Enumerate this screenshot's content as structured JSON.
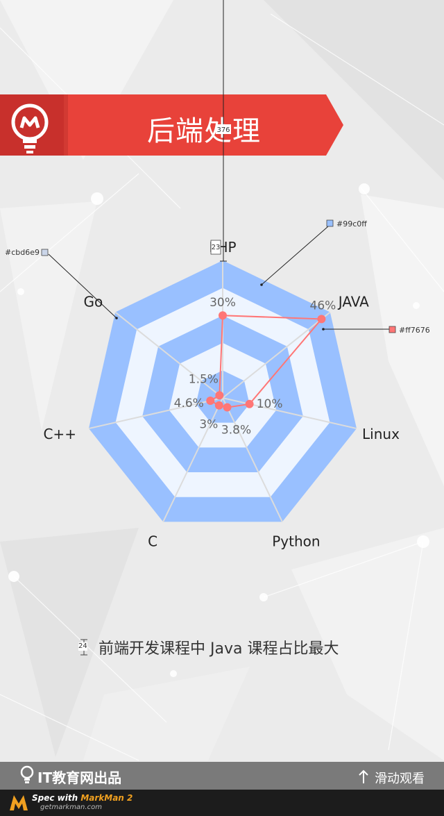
{
  "banner": {
    "title": "后端处理"
  },
  "caption": "前端开发课程中 Java 课程占比最大",
  "footer": {
    "brand": "IT教育网出品",
    "scroll_hint": "滑动观看"
  },
  "spec": {
    "line1_prefix": "Spec with ",
    "line1_app": "MarkMan 2",
    "line2": "getmarkman.com"
  },
  "colors": {
    "ring_blue": "#99c0ff",
    "ring_light": "#eef5ff",
    "line_red": "#ff7676",
    "grid": "#cbd6e9",
    "banner_red": "#e8423a"
  },
  "annotations": {
    "measure_top": "376",
    "measure_php": "23",
    "measure_caption": "24",
    "color_blue": "#99c0ff",
    "color_grid": "#cbd6e9",
    "color_red": "#ff7676"
  },
  "chart_data": {
    "type": "radar",
    "categories": [
      "PHP",
      "JAVA",
      "Linux",
      "Python",
      "C",
      "C++",
      "Go"
    ],
    "values": [
      30,
      46,
      10,
      3.8,
      3,
      4.6,
      1.5
    ],
    "value_labels": [
      "30%",
      "46%",
      "10%",
      "3.8%",
      "3%",
      "4.6%",
      "1.5%"
    ],
    "rmax": 50
  }
}
